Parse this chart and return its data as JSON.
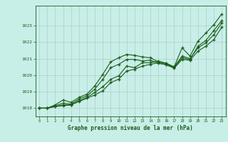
{
  "xlabel": "Graphe pression niveau de la mer (hPa)",
  "background_color": "#c8eee8",
  "grid_color": "#b0ccc8",
  "line_color": "#1a5c1a",
  "marker_color": "#1a5c1a",
  "xlim": [
    -0.5,
    23.5
  ],
  "ylim": [
    1017.5,
    1024.2
  ],
  "yticks": [
    1018,
    1019,
    1020,
    1021,
    1022,
    1023
  ],
  "xticks": [
    0,
    1,
    2,
    3,
    4,
    5,
    6,
    7,
    8,
    9,
    10,
    11,
    12,
    13,
    14,
    15,
    16,
    17,
    18,
    19,
    20,
    21,
    22,
    23
  ],
  "series": [
    [
      1018.0,
      1018.0,
      1018.2,
      1018.5,
      1018.35,
      1018.65,
      1018.85,
      1019.35,
      1020.05,
      1020.8,
      1021.05,
      1021.25,
      1021.2,
      1021.1,
      1021.05,
      1020.8,
      1020.7,
      1020.5,
      1021.65,
      1021.15,
      1022.05,
      1022.55,
      1023.05,
      1023.7
    ],
    [
      1018.0,
      1018.0,
      1018.15,
      1018.3,
      1018.25,
      1018.55,
      1018.75,
      1019.15,
      1019.75,
      1020.45,
      1020.65,
      1020.95,
      1020.95,
      1020.85,
      1020.9,
      1020.7,
      1020.65,
      1020.45,
      1021.05,
      1020.95,
      1021.75,
      1022.1,
      1022.7,
      1023.3
    ],
    [
      1018.0,
      1018.0,
      1018.1,
      1018.2,
      1018.2,
      1018.45,
      1018.65,
      1018.95,
      1019.3,
      1019.75,
      1019.95,
      1020.55,
      1020.45,
      1020.75,
      1020.75,
      1020.85,
      1020.72,
      1020.5,
      1021.15,
      1021.0,
      1021.65,
      1021.95,
      1022.45,
      1023.15
    ],
    [
      1018.0,
      1018.0,
      1018.1,
      1018.15,
      1018.2,
      1018.4,
      1018.6,
      1018.8,
      1019.05,
      1019.55,
      1019.75,
      1020.25,
      1020.35,
      1020.55,
      1020.65,
      1020.75,
      1020.62,
      1020.42,
      1020.95,
      1020.9,
      1021.45,
      1021.75,
      1022.15,
      1022.9
    ]
  ]
}
